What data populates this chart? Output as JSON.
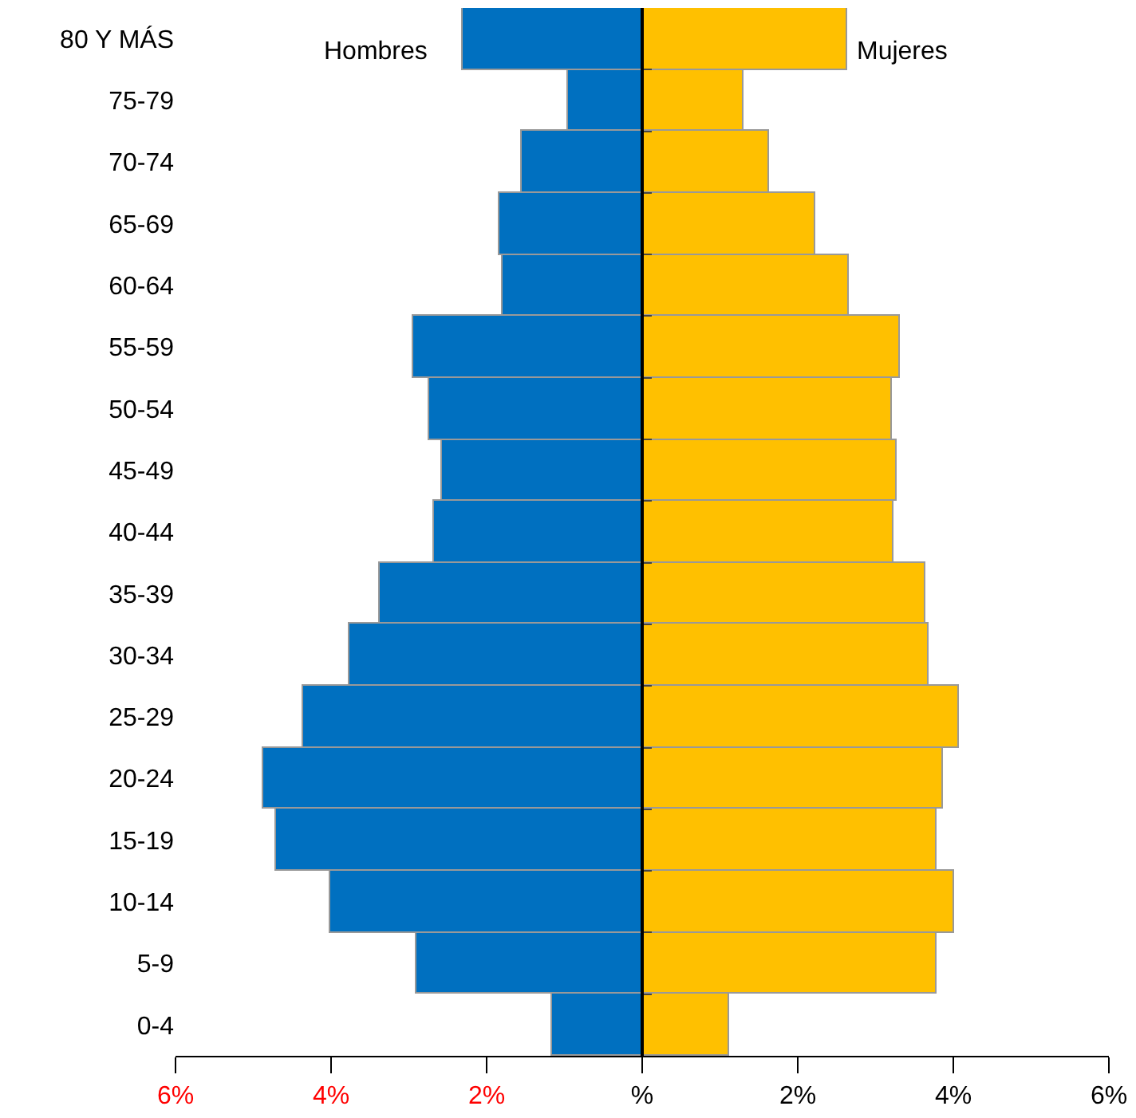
{
  "chart_data": {
    "type": "bar",
    "orientation": "horizontal",
    "categories": [
      "80 Y MÁS",
      "75-79",
      "70-74",
      "65-69",
      "60-64",
      "55-59",
      "50-54",
      "45-49",
      "40-44",
      "35-39",
      "30-34",
      "25-29",
      "20-24",
      "15-19",
      "10-14",
      "5-9",
      "0-4"
    ],
    "series": [
      {
        "name": "Hombres",
        "color": "#0070c0",
        "values": [
          -2.3,
          -0.96,
          -1.55,
          -1.84,
          -1.8,
          -2.94,
          -2.73,
          -2.57,
          -2.67,
          -3.37,
          -3.76,
          -4.35,
          -4.88,
          -4.71,
          -4.02,
          -2.9,
          -1.16
        ]
      },
      {
        "name": "Mujeres",
        "color": "#ffc000",
        "values": [
          2.63,
          1.31,
          1.63,
          2.22,
          2.65,
          3.31,
          3.2,
          3.27,
          3.24,
          3.65,
          3.69,
          4.08,
          3.86,
          3.78,
          4.0,
          3.78,
          1.12
        ]
      }
    ],
    "xlim": [
      -6,
      6
    ],
    "xticks": [
      {
        "value": -6,
        "label": "6%"
      },
      {
        "value": -4,
        "label": "4%"
      },
      {
        "value": -2,
        "label": "2%"
      },
      {
        "value": 0,
        "label": "%"
      },
      {
        "value": 2,
        "label": "2%"
      },
      {
        "value": 4,
        "label": "4%"
      },
      {
        "value": 6,
        "label": "6%"
      }
    ],
    "legend": false,
    "stacked": true
  }
}
